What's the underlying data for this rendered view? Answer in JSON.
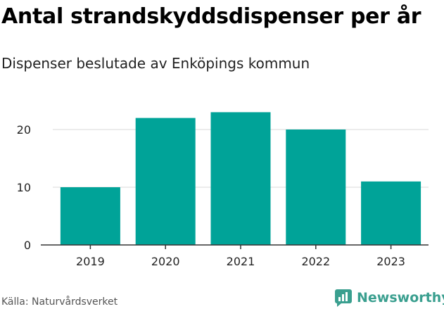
{
  "title": "Antal strandskyddsdispenser per år",
  "subtitle": "Dispenser beslutade av Enköpings kommun",
  "source": "Källa: Naturvårdsverket",
  "brand": "Newsworthy",
  "colors": {
    "bar": "#00a398",
    "grid": "#d9d9d9",
    "axis": "#333333",
    "brand": "#3a9f8f"
  },
  "chart_data": {
    "type": "bar",
    "title": "Antal strandskyddsdispenser per år",
    "subtitle": "Dispenser beslutade av Enköpings kommun",
    "xlabel": "",
    "ylabel": "",
    "categories": [
      "2019",
      "2020",
      "2021",
      "2022",
      "2023"
    ],
    "values": [
      10,
      22,
      23,
      20,
      11
    ],
    "ylim": [
      0,
      25
    ],
    "yticks": [
      0,
      10,
      20
    ],
    "grid": true,
    "legend": "none"
  }
}
